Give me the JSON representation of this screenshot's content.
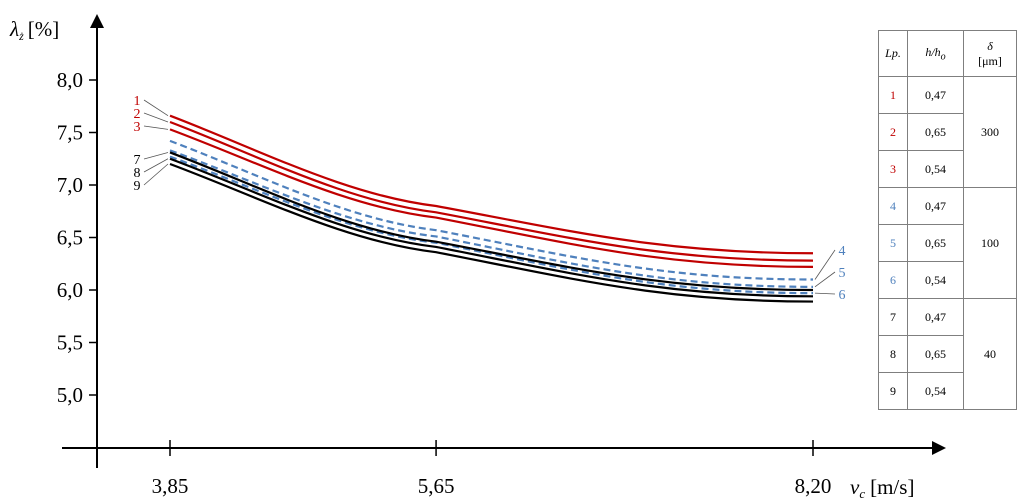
{
  "colors": {
    "red": "#c00000",
    "blue": "#4f81bd",
    "black": "#000000",
    "axis": "#000000",
    "grid": "#000000"
  },
  "chart_data": {
    "type": "line",
    "y_axis_title": "λ",
    "y_axis_sub": "ż",
    "y_axis_unit": "[%]",
    "x_axis_title": "v",
    "x_axis_sub": "c",
    "x_axis_unit": "[m/s]",
    "ylim": [
      4.5,
      8.4
    ],
    "xlim": [
      3.35,
      9.35
    ],
    "y_ticks": [
      5.0,
      5.5,
      6.0,
      6.5,
      7.0,
      7.5,
      8.0
    ],
    "y_tick_labels": [
      "5,0",
      "5,5",
      "6,0",
      "6,5",
      "7,0",
      "7,5",
      "8,0"
    ],
    "x_ticks": [
      3.85,
      5.65,
      8.2
    ],
    "x_tick_labels": [
      "3,85",
      "5,65",
      "8,20"
    ],
    "grid": false,
    "legend_placement": "right",
    "series": [
      {
        "name": "1",
        "style": "red-solid",
        "x": [
          3.85,
          5.65,
          8.2
        ],
        "y": [
          7.66,
          6.8,
          6.35
        ]
      },
      {
        "name": "2",
        "style": "red-solid",
        "x": [
          3.85,
          5.65,
          8.2
        ],
        "y": [
          7.6,
          6.74,
          6.28
        ]
      },
      {
        "name": "3",
        "style": "red-solid",
        "x": [
          3.85,
          5.65,
          8.2
        ],
        "y": [
          7.53,
          6.69,
          6.22
        ]
      },
      {
        "name": "4",
        "style": "blue-dashed",
        "x": [
          3.85,
          5.65,
          8.2
        ],
        "y": [
          7.42,
          6.57,
          6.1
        ]
      },
      {
        "name": "5",
        "style": "blue-dashed",
        "x": [
          3.85,
          5.65,
          8.2
        ],
        "y": [
          7.33,
          6.51,
          6.03
        ]
      },
      {
        "name": "6",
        "style": "blue-dashed",
        "x": [
          3.85,
          5.65,
          8.2
        ],
        "y": [
          7.27,
          6.45,
          5.97
        ]
      },
      {
        "name": "7",
        "style": "black-solid",
        "x": [
          3.85,
          5.65,
          8.2
        ],
        "y": [
          7.31,
          6.46,
          6.0
        ]
      },
      {
        "name": "8",
        "style": "black-solid",
        "x": [
          3.85,
          5.65,
          8.2
        ],
        "y": [
          7.25,
          6.41,
          5.94
        ]
      },
      {
        "name": "9",
        "style": "black-solid",
        "x": [
          3.85,
          5.65,
          8.2
        ],
        "y": [
          7.2,
          6.36,
          5.89
        ]
      }
    ],
    "left_labels": [
      "1",
      "2",
      "3",
      "7",
      "8",
      "9"
    ],
    "right_labels": [
      "4",
      "5",
      "6"
    ]
  },
  "legend_table": {
    "headers": {
      "lp": "Lp.",
      "h": "h/h",
      "h_sub": "o",
      "delta": "δ",
      "delta_unit": "[μm]"
    },
    "rows": [
      {
        "lp": "1",
        "h": "0,47",
        "color": "#c00000"
      },
      {
        "lp": "2",
        "h": "0,65",
        "color": "#c00000"
      },
      {
        "lp": "3",
        "h": "0,54",
        "color": "#c00000"
      },
      {
        "lp": "4",
        "h": "0,47",
        "color": "#4f81bd"
      },
      {
        "lp": "5",
        "h": "0,65",
        "color": "#4f81bd"
      },
      {
        "lp": "6",
        "h": "0,54",
        "color": "#4f81bd"
      },
      {
        "lp": "7",
        "h": "0,47",
        "color": "#000000"
      },
      {
        "lp": "8",
        "h": "0,65",
        "color": "#000000"
      },
      {
        "lp": "9",
        "h": "0,54",
        "color": "#000000"
      }
    ],
    "groups": [
      "300",
      "100",
      "40"
    ]
  }
}
